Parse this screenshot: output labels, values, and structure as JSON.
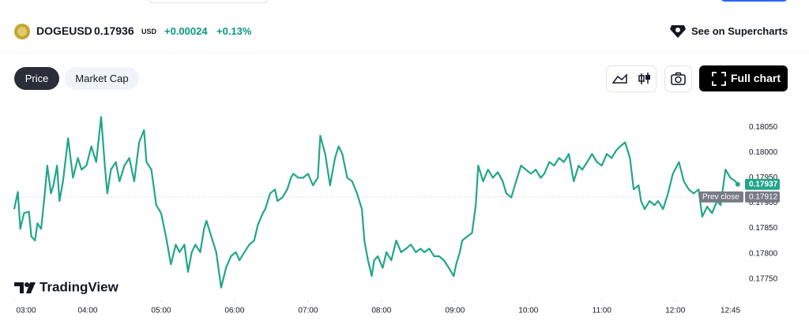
{
  "header": {
    "symbol": "DOGEUSD",
    "price": "0.17936",
    "currency": "USD",
    "change": "+0.00024",
    "change_percent": "+0.13%",
    "link": "See on Supercharts"
  },
  "tabs": [
    "Price",
    "Market Cap"
  ],
  "full_chart": "Full chart",
  "brand": "TradingView",
  "chart_data": {
    "type": "line",
    "xlim": [
      180,
      775
    ],
    "xticks": [
      {
        "value": 180,
        "label": "03:00"
      },
      {
        "value": 240,
        "label": "04:00"
      },
      {
        "value": 300,
        "label": "05:00"
      },
      {
        "value": 360,
        "label": "06:00"
      },
      {
        "value": 420,
        "label": "07:00"
      },
      {
        "value": 480,
        "label": "08:00"
      },
      {
        "value": 540,
        "label": "09:00"
      },
      {
        "value": 600,
        "label": "10:00"
      },
      {
        "value": 660,
        "label": "11:00"
      },
      {
        "value": 720,
        "label": "12:00"
      },
      {
        "value": 765,
        "label": "12:45"
      }
    ],
    "ylim": [
      0.17717,
      0.18083
    ],
    "yticks": [
      {
        "value": 0.1775,
        "label": "0.17750"
      },
      {
        "value": 0.178,
        "label": "0.17800"
      },
      {
        "value": 0.1785,
        "label": "0.17850"
      },
      {
        "value": 0.179,
        "label": "0.17900"
      },
      {
        "value": 0.1795,
        "label": "0.17950"
      },
      {
        "value": 0.18,
        "label": "0.18000"
      },
      {
        "value": 0.1805,
        "label": "0.18050"
      }
    ],
    "prev_close": {
      "label": "Prev close",
      "value": 0.17912
    },
    "series": [
      {
        "color": "#22a68b",
        "x": [
          180,
          183,
          185,
          188,
          192,
          194,
          197,
          199,
          202,
          205,
          207,
          210,
          212,
          215,
          217,
          220,
          224,
          228,
          232,
          235,
          239,
          243,
          247,
          251,
          254,
          256,
          259,
          263,
          266,
          270,
          274,
          278,
          282,
          286,
          288,
          292,
          296,
          300,
          304,
          308,
          312,
          315,
          319,
          322,
          325,
          328,
          332,
          335,
          337,
          341,
          345,
          349,
          353,
          357,
          361,
          364,
          368,
          372,
          376,
          379,
          383,
          385,
          389,
          393,
          395,
          399,
          403,
          406,
          408,
          412,
          416,
          420,
          424,
          428,
          430,
          434,
          438,
          442,
          445,
          448,
          452,
          456,
          460,
          464,
          466,
          469,
          472,
          474,
          477,
          481,
          484,
          488,
          492,
          496,
          500,
          504,
          508,
          512,
          515,
          519,
          523,
          527,
          531,
          535,
          539,
          541,
          544,
          546,
          550,
          554,
          557,
          559,
          563,
          567,
          571,
          575,
          579,
          582,
          586,
          590,
          594,
          598,
          602,
          606,
          610,
          613,
          617,
          621,
          625,
          629,
          633,
          637,
          641,
          644,
          648,
          652,
          656,
          660,
          664,
          668,
          672,
          675,
          679,
          683,
          686,
          690,
          692,
          695,
          699,
          703,
          706,
          710,
          714,
          718,
          723,
          727,
          731,
          735,
          739,
          742,
          746,
          750,
          754,
          757,
          761,
          765,
          769,
          771
        ],
        "values": [
          0.17888,
          0.17922,
          0.17849,
          0.1788,
          0.17883,
          0.17834,
          0.17826,
          0.1786,
          0.17849,
          0.17919,
          0.17974,
          0.17919,
          0.17935,
          0.17974,
          0.17904,
          0.17946,
          0.18028,
          0.1795,
          0.17989,
          0.17966,
          0.17974,
          0.18012,
          0.17981,
          0.1807,
          0.17974,
          0.17919,
          0.17966,
          0.17981,
          0.17943,
          0.17974,
          0.17989,
          0.17943,
          0.1802,
          0.18044,
          0.17981,
          0.17966,
          0.17896,
          0.1788,
          0.17834,
          0.17779,
          0.17818,
          0.17803,
          0.17818,
          0.17764,
          0.17803,
          0.17818,
          0.17803,
          0.17849,
          0.17865,
          0.17834,
          0.17803,
          0.17733,
          0.17772,
          0.17795,
          0.17803,
          0.17787,
          0.17803,
          0.17818,
          0.17826,
          0.17857,
          0.1788,
          0.17888,
          0.17919,
          0.17927,
          0.17904,
          0.17911,
          0.17927,
          0.1795,
          0.17958,
          0.1795,
          0.1795,
          0.17958,
          0.17935,
          0.1795,
          0.18033,
          0.17997,
          0.17935,
          0.17989,
          0.18012,
          0.17997,
          0.1795,
          0.17943,
          0.17919,
          0.17888,
          0.17826,
          0.17787,
          0.17756,
          0.17787,
          0.17795,
          0.17772,
          0.17803,
          0.17787,
          0.17826,
          0.17803,
          0.1781,
          0.17818,
          0.17803,
          0.1781,
          0.17803,
          0.1781,
          0.17795,
          0.17795,
          0.17787,
          0.17772,
          0.17756,
          0.17779,
          0.17803,
          0.17826,
          0.17834,
          0.17841,
          0.17896,
          0.17974,
          0.17943,
          0.17966,
          0.1795,
          0.17961,
          0.17943,
          0.17919,
          0.17911,
          0.17943,
          0.17974,
          0.17966,
          0.17958,
          0.17966,
          0.1795,
          0.17958,
          0.17981,
          0.17974,
          0.17989,
          0.17981,
          0.17997,
          0.17943,
          0.17974,
          0.17966,
          0.17981,
          0.17997,
          0.17981,
          0.17974,
          0.17997,
          0.17989,
          0.18005,
          0.18012,
          0.1802,
          0.17989,
          0.17927,
          0.17935,
          0.17904,
          0.17888,
          0.17904,
          0.17896,
          0.17904,
          0.17888,
          0.17919,
          0.17958,
          0.17981,
          0.17943,
          0.17927,
          0.17919,
          0.17927,
          0.17873,
          0.17893,
          0.1788,
          0.17904,
          0.17896,
          0.17966,
          0.1795,
          0.17943,
          0.17937
        ]
      }
    ]
  }
}
